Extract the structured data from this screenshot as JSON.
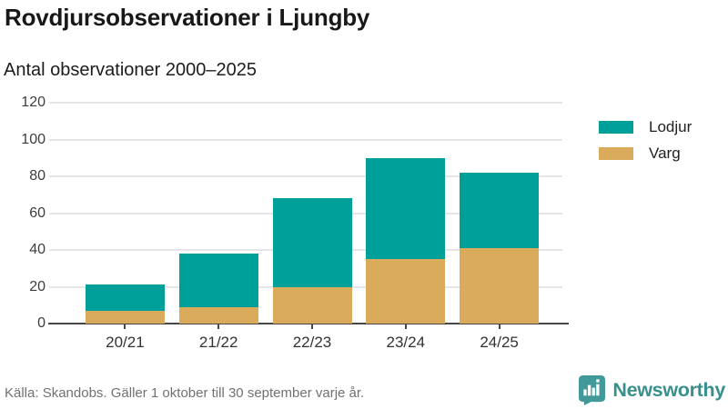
{
  "header": {
    "title": "Rovdjursobservationer i Ljungby",
    "subtitle": "Antal observationer 2000–2025"
  },
  "chart_data": {
    "type": "bar",
    "stacked": true,
    "categories": [
      "20/21",
      "21/22",
      "22/23",
      "23/24",
      "24/25"
    ],
    "series": [
      {
        "name": "Lodjur",
        "color": "#00a09a",
        "values": [
          14,
          29,
          48,
          55,
          41
        ]
      },
      {
        "name": "Varg",
        "color": "#daab5a",
        "values": [
          7,
          9,
          20,
          35,
          41
        ]
      }
    ],
    "stack_order_bottom_to_top": [
      "Varg",
      "Lodjur"
    ],
    "stack_totals": [
      21,
      38,
      68,
      90,
      82
    ],
    "title": "Rovdjursobservationer i Ljungby",
    "subtitle": "Antal observationer 2000–2025",
    "xlabel": "",
    "ylabel": "",
    "ylim": [
      0,
      120
    ],
    "yticks": [
      0,
      20,
      40,
      60,
      80,
      100,
      120
    ],
    "grid": true,
    "legend_position": "right"
  },
  "footer": {
    "source": "Källa: Skandobs. Gäller 1 oktober till 30 september varje år."
  },
  "brand": {
    "name": "Newsworthy",
    "icon": "bar-chart-speech-bubble-icon",
    "color": "#38908c"
  },
  "colors": {
    "lodjur": "#00a09a",
    "varg": "#daab5a",
    "grid": "#e6e6e6",
    "axis": "#474747",
    "text": "#1c1c1c",
    "muted": "#717171"
  }
}
